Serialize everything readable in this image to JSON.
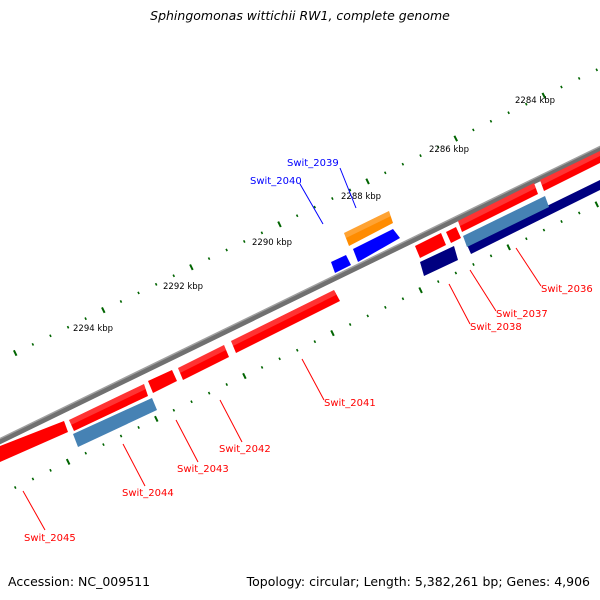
{
  "title": "Sphingomonas wittichii RW1, complete genome",
  "footer": {
    "accession": "Accession: NC_009511",
    "summary": "Topology: circular; Length: 5,382,261 bp; Genes: 4,906"
  },
  "colors": {
    "forward_cds": "#ff0000",
    "reverse_cds": "#4682b4",
    "reverse_cds_dark": "#000080",
    "orange_feature": "#ff8c00",
    "blue_feature": "#0000ff",
    "backbone": "#808080",
    "tick": "#006400",
    "label_red": "#ff0000",
    "label_blue": "#0000ff"
  },
  "kbp_labels": [
    "2284 kbp",
    "2286 kbp",
    "2288 kbp",
    "2290 kbp",
    "2292 kbp",
    "2294 kbp"
  ],
  "gene_labels": {
    "g2036": "Swit_2036",
    "g2037": "Swit_2037",
    "g2038": "Swit_2038",
    "g2039": "Swit_2039",
    "g2040": "Swit_2040",
    "g2041": "Swit_2041",
    "g2042": "Swit_2042",
    "g2043": "Swit_2043",
    "g2044": "Swit_2044",
    "g2045": "Swit_2045"
  }
}
